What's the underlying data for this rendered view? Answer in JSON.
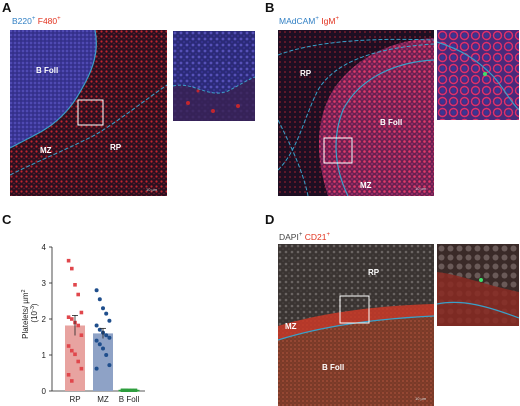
{
  "panels": {
    "a": {
      "letter": "A",
      "stain_1": "B220",
      "stain_1_mark": "+",
      "stain_2": "F480",
      "stain_2_mark": "+",
      "labels": {
        "region_1": "B Foll",
        "region_2": "MZ",
        "region_3": "RP"
      },
      "scale": "10 µm"
    },
    "b": {
      "letter": "B",
      "stain_1": "MAdCAM",
      "stain_1_mark": "+",
      "stain_2": "IgM",
      "stain_2_mark": "+",
      "labels": {
        "region_1": "RP",
        "region_2": "B Foll",
        "region_3": "MZ"
      },
      "scale": "10 µm"
    },
    "c": {
      "letter": "C"
    },
    "d": {
      "letter": "D",
      "stain_1": "DAPI",
      "stain_1_mark": "+",
      "stain_2": "CD21",
      "stain_2_mark": "+",
      "labels": {
        "region_1": "RP",
        "region_2": "MZ",
        "region_3": "B Foll"
      },
      "scale": "10 µm"
    }
  },
  "colors": {
    "rp": "#e0474c",
    "rp_fill": "#e8a3a0",
    "mz": "#1f4e8c",
    "mz_fill": "#8ea2c6",
    "bfoll": "#2e9e3e",
    "boundary": "#3aa0c8"
  },
  "chart_data": {
    "type": "bar",
    "categories": [
      "RP",
      "MZ",
      "B Foll"
    ],
    "values": [
      1.82,
      1.6,
      0.02
    ],
    "errors": [
      0.28,
      0.14,
      0.0
    ],
    "ylabel": "Platelets/ µm² (10⁻³)",
    "ylabel_line1": "Platelets/ µm",
    "ylabel_sup": "2",
    "ylabel_line2": "(10",
    "ylabel_sup2": "-3",
    "ylabel_close": ")",
    "ylim": [
      0,
      4
    ],
    "yticks": [
      0,
      1,
      2,
      3,
      4
    ],
    "points": [
      [
        3.62,
        3.4,
        2.95,
        2.68,
        2.18,
        2.05,
        2.0,
        1.9,
        1.82,
        1.55,
        1.25,
        1.12,
        1.02,
        0.82,
        0.62,
        0.45,
        0.28
      ],
      [
        2.8,
        2.55,
        2.3,
        2.15,
        1.95,
        1.82,
        1.7,
        1.62,
        1.55,
        1.48,
        1.4,
        1.3,
        1.18,
        1.0,
        0.72,
        0.62
      ],
      [
        0.02,
        0.02,
        0.02,
        0.02,
        0.02,
        0.02,
        0.02,
        0.02,
        0.02,
        0.02,
        0.02,
        0.02
      ]
    ]
  }
}
